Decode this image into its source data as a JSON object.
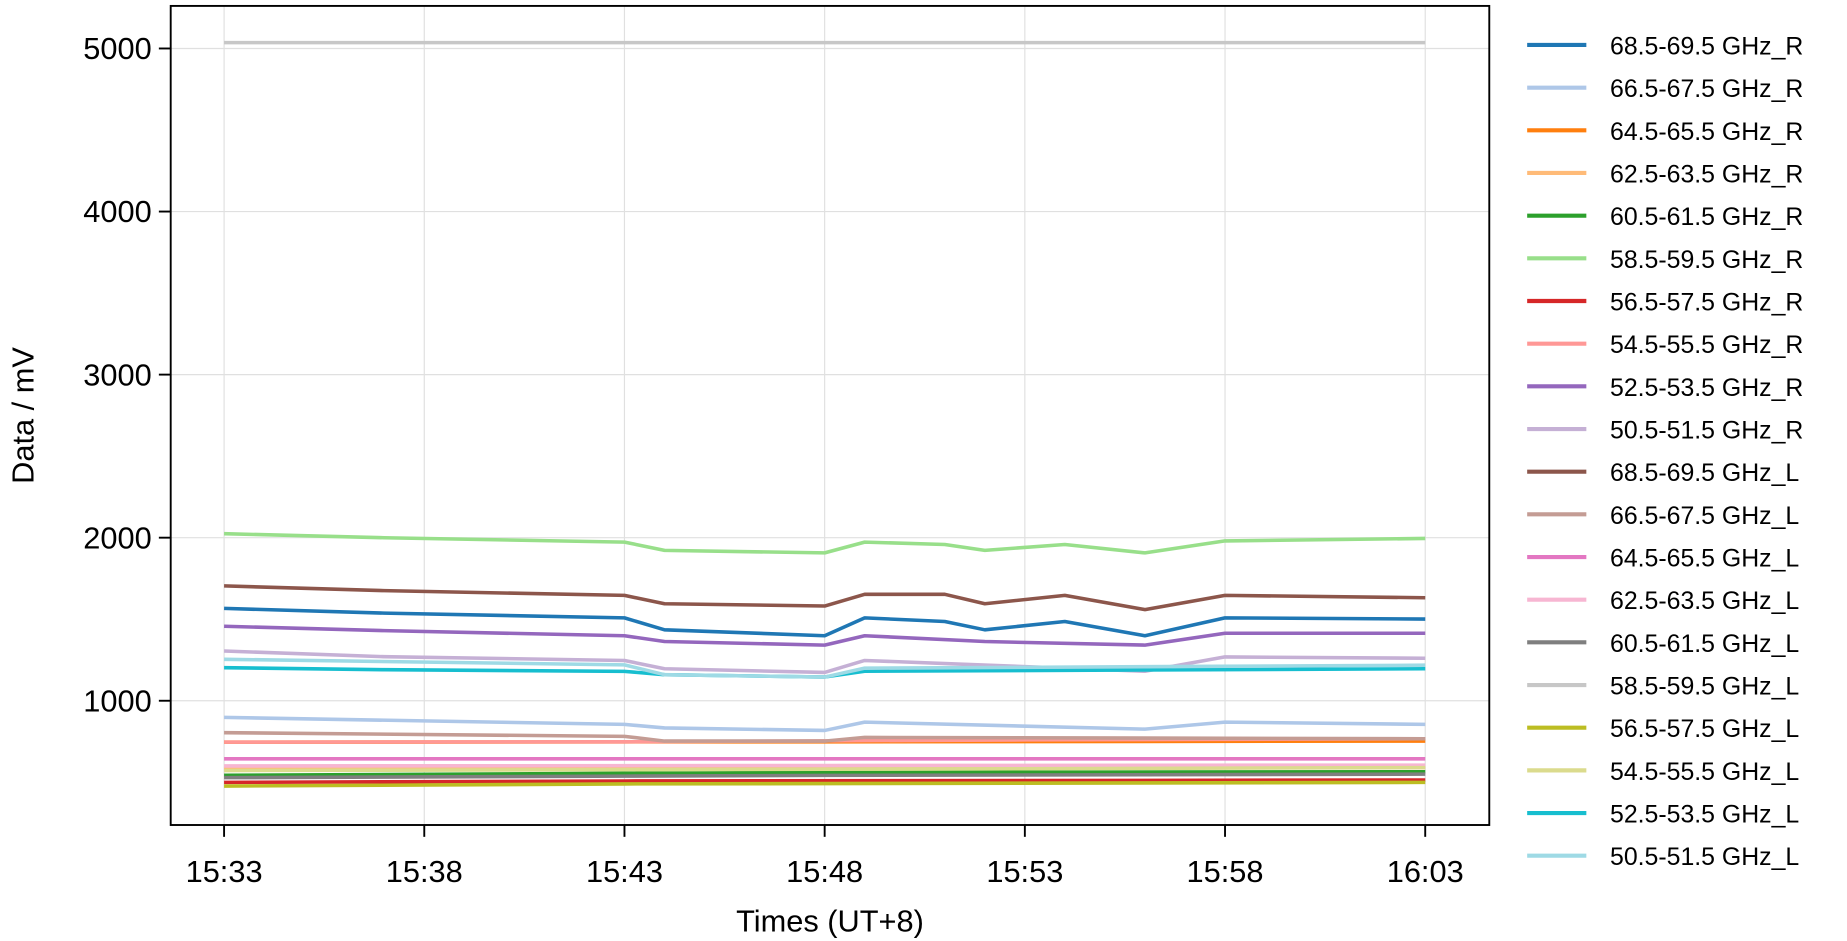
{
  "chart_data": {
    "type": "line",
    "title": "",
    "xlabel": "Times (UT+8)",
    "ylabel": "Data / mV",
    "xlim": [
      "15:31:40",
      "16:04:36"
    ],
    "ylim": [
      238,
      5261
    ],
    "grid": true,
    "legend": "outside-right",
    "xticks": [
      "15:33",
      "15:38",
      "15:43",
      "15:48",
      "15:53",
      "15:58",
      "16:03"
    ],
    "yticks": [
      1000,
      2000,
      3000,
      4000,
      5000
    ],
    "series": [
      {
        "name": "68.5-69.5 GHz_R",
        "color": "#1f77b4",
        "x": [
          "15:33",
          "15:37",
          "15:43",
          "15:44",
          "15:48",
          "15:49",
          "15:51",
          "15:52",
          "15:54",
          "15:56",
          "15:58",
          "16:03"
        ],
        "y": [
          1566,
          1537,
          1508,
          1435,
          1399,
          1508,
          1486,
          1435,
          1486,
          1399,
          1508,
          1501
        ]
      },
      {
        "name": "66.5-67.5 GHz_R",
        "color": "#aec7e8",
        "x": [
          "15:33",
          "15:43",
          "15:44",
          "15:48",
          "15:49",
          "15:56",
          "15:58",
          "16:03"
        ],
        "y": [
          898,
          855,
          833,
          818,
          869,
          826,
          869,
          855
        ]
      },
      {
        "name": "64.5-65.5 GHz_R",
        "color": "#ff7f0e",
        "x": [
          "15:33",
          "15:48",
          "16:03"
        ],
        "y": [
          746,
          748,
          753
        ]
      },
      {
        "name": "62.5-63.5 GHz_R",
        "color": "#ffbb78",
        "x": [
          "15:33",
          "15:48",
          "16:03"
        ],
        "y": [
          586,
          590,
          590
        ]
      },
      {
        "name": "60.5-61.5 GHz_R",
        "color": "#2ca02c",
        "x": [
          "15:33",
          "15:43",
          "15:48",
          "16:03"
        ],
        "y": [
          543,
          555,
          560,
          565
        ]
      },
      {
        "name": "58.5-59.5 GHz_R",
        "color": "#98df8a",
        "x": [
          "15:33",
          "15:37",
          "15:43",
          "15:44",
          "15:48",
          "15:49",
          "15:51",
          "15:52",
          "15:54",
          "15:56",
          "15:58",
          "16:03"
        ],
        "y": [
          2024,
          2000,
          1973,
          1922,
          1907,
          1973,
          1958,
          1922,
          1958,
          1907,
          1980,
          1995
        ]
      },
      {
        "name": "56.5-57.5 GHz_R",
        "color": "#d62728",
        "x": [
          "15:33",
          "15:43",
          "16:03"
        ],
        "y": [
          499,
          508,
          514
        ]
      },
      {
        "name": "54.5-55.5 GHz_R",
        "color": "#ff9896",
        "x": [
          "15:33",
          "15:43",
          "15:53",
          "16:03"
        ],
        "y": [
          746,
          748,
          760,
          767
        ]
      },
      {
        "name": "52.5-53.5 GHz_R",
        "color": "#9467bd",
        "x": [
          "15:33",
          "15:37",
          "15:43",
          "15:44",
          "15:48",
          "15:49",
          "15:52",
          "15:56",
          "15:58",
          "16:03"
        ],
        "y": [
          1457,
          1430,
          1399,
          1363,
          1341,
          1399,
          1363,
          1341,
          1414,
          1414
        ]
      },
      {
        "name": "50.5-51.5 GHz_R",
        "color": "#c5b0d5",
        "x": [
          "15:33",
          "15:37",
          "15:43",
          "15:44",
          "15:48",
          "15:49",
          "15:56",
          "15:58",
          "16:03"
        ],
        "y": [
          1305,
          1270,
          1247,
          1196,
          1174,
          1247,
          1181,
          1269,
          1261
        ]
      },
      {
        "name": "68.5-69.5 GHz_L",
        "color": "#8c564b",
        "x": [
          "15:33",
          "15:37",
          "15:43",
          "15:44",
          "15:48",
          "15:49",
          "15:51",
          "15:52",
          "15:54",
          "15:56",
          "15:58",
          "16:03"
        ],
        "y": [
          1704,
          1675,
          1646,
          1595,
          1581,
          1653,
          1653,
          1595,
          1646,
          1559,
          1646,
          1632
        ]
      },
      {
        "name": "66.5-67.5 GHz_L",
        "color": "#c49c94",
        "x": [
          "15:33",
          "15:43",
          "15:44",
          "15:48",
          "15:49",
          "16:03"
        ],
        "y": [
          804,
          782,
          753,
          753,
          775,
          767
        ]
      },
      {
        "name": "64.5-65.5 GHz_L",
        "color": "#e377c2",
        "x": [
          "15:33",
          "15:48",
          "16:03"
        ],
        "y": [
          644,
          644,
          644
        ]
      },
      {
        "name": "62.5-63.5 GHz_L",
        "color": "#f7b6d2",
        "x": [
          "15:33",
          "15:48",
          "16:03"
        ],
        "y": [
          600,
          603,
          605
        ]
      },
      {
        "name": "60.5-61.5 GHz_L",
        "color": "#7f7f7f",
        "x": [
          "15:33",
          "15:43",
          "15:48",
          "16:03"
        ],
        "y": [
          528,
          538,
          542,
          550
        ]
      },
      {
        "name": "58.5-59.5 GHz_L",
        "color": "#c7c7c7",
        "x": [
          "15:33",
          "16:03"
        ],
        "y": [
          5036,
          5036
        ]
      },
      {
        "name": "56.5-57.5 GHz_L",
        "color": "#bcbd22",
        "x": [
          "15:33",
          "15:43",
          "16:03"
        ],
        "y": [
          477,
          490,
          499
        ]
      },
      {
        "name": "54.5-55.5 GHz_L",
        "color": "#dbdb8d",
        "x": [
          "15:33",
          "15:48",
          "16:03"
        ],
        "y": [
          572,
          580,
          590
        ]
      },
      {
        "name": "52.5-53.5 GHz_L",
        "color": "#17becf",
        "x": [
          "15:33",
          "15:37",
          "15:43",
          "15:44",
          "15:48",
          "15:49",
          "16:03"
        ],
        "y": [
          1203,
          1190,
          1180,
          1160,
          1145,
          1181,
          1196
        ]
      },
      {
        "name": "50.5-51.5 GHz_L",
        "color": "#9edae5",
        "x": [
          "15:33",
          "15:43",
          "15:44",
          "15:48",
          "15:49",
          "16:03"
        ],
        "y": [
          1254,
          1220,
          1160,
          1145,
          1200,
          1218
        ]
      }
    ]
  }
}
